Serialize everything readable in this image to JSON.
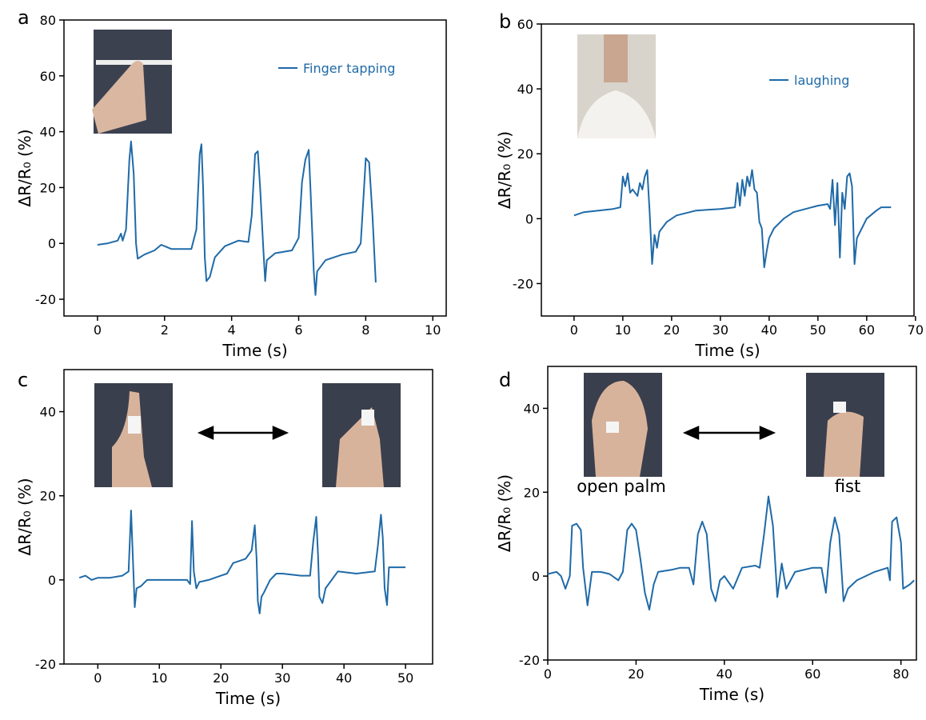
{
  "chart_data": [
    {
      "type": "line",
      "label": "a",
      "x_label": "Time (s)",
      "y_label": "ΔR/R₀ (%)",
      "xlim": [
        -1,
        10.4
      ],
      "ylim": [
        -26,
        80
      ],
      "xticks": [
        0,
        2,
        4,
        6,
        8,
        10
      ],
      "yticks": [
        -20,
        0,
        20,
        40,
        60,
        80
      ],
      "series": [
        {
          "name": "Finger tapping",
          "color": "#1f6aa8",
          "x": [
            0,
            0.3,
            0.6,
            0.7,
            0.75,
            0.85,
            0.95,
            1.0,
            1.08,
            1.15,
            1.2,
            1.4,
            1.7,
            1.9,
            2.0,
            2.2,
            2.5,
            2.8,
            2.95,
            3.05,
            3.1,
            3.15,
            3.2,
            3.25,
            3.35,
            3.5,
            3.8,
            4.2,
            4.5,
            4.6,
            4.7,
            4.78,
            4.85,
            4.95,
            5.0,
            5.05,
            5.3,
            5.8,
            6.0,
            6.1,
            6.2,
            6.3,
            6.35,
            6.45,
            6.5,
            6.55,
            6.8,
            7.3,
            7.7,
            7.85,
            7.95,
            8.0,
            8.1,
            8.2,
            8.3
          ],
          "values": [
            -0.5,
            0,
            1,
            3.5,
            1,
            5,
            30,
            36.5,
            25,
            0,
            -5.5,
            -4,
            -2.5,
            -0.5,
            -1,
            -2,
            -2,
            -2,
            5,
            32,
            35.5,
            20,
            -5,
            -13.5,
            -12,
            -5,
            -1,
            1,
            0.5,
            10,
            32,
            33,
            20,
            -3,
            -13.5,
            -6,
            -3.5,
            -2.5,
            2,
            22,
            30,
            33.5,
            20,
            -10,
            -18.5,
            -10,
            -6,
            -4,
            -3,
            0,
            20,
            30.5,
            29,
            10,
            -14
          ]
        }
      ]
    },
    {
      "type": "line",
      "label": "b",
      "x_label": "Time (s)",
      "y_label": "ΔR/R₀ (%)",
      "xlim": [
        -6.7,
        69.7
      ],
      "ylim": [
        -30,
        60
      ],
      "xticks": [
        0,
        10,
        20,
        30,
        40,
        50,
        60,
        70
      ],
      "yticks": [
        -20,
        0,
        20,
        40,
        60
      ],
      "series": [
        {
          "name": "laughing",
          "color": "#1f6aa8",
          "x": [
            0,
            2,
            5,
            8,
            9.5,
            10,
            10.5,
            11,
            11.5,
            12,
            13,
            13.5,
            14,
            14.5,
            15,
            15.5,
            16,
            16.5,
            17,
            17.5,
            18,
            19,
            21,
            25,
            30,
            33,
            33.5,
            34,
            34.5,
            35,
            35.5,
            36,
            36.5,
            37,
            37.5,
            38,
            38.5,
            39,
            39.5,
            40,
            41,
            43,
            45,
            50,
            52,
            52.5,
            53,
            53.5,
            54,
            54.5,
            55,
            55.5,
            56,
            56.5,
            57,
            57.5,
            58,
            59,
            60,
            62,
            63,
            64,
            65
          ],
          "values": [
            1,
            2,
            2.5,
            3,
            3.5,
            13,
            10,
            14,
            8,
            9,
            7,
            11,
            9,
            13,
            15,
            2,
            -14,
            -5,
            -9,
            -4,
            -3,
            -1,
            1,
            2.5,
            3,
            3.5,
            11,
            4,
            12,
            7,
            13,
            10,
            15,
            9,
            8,
            -1,
            -3,
            -15,
            -10,
            -6,
            -3,
            0,
            2,
            4,
            4.5,
            3,
            12,
            -2,
            11,
            -12,
            8,
            3,
            13,
            14,
            10,
            -14,
            -6,
            -3,
            0,
            2.5,
            3.5,
            3.5,
            3.5
          ]
        }
      ]
    },
    {
      "type": "line",
      "label": "c",
      "x_label": "Time (s)",
      "y_label": "ΔR/R₀ (%)",
      "xlim": [
        -5.5,
        54.4
      ],
      "ylim": [
        -20,
        50
      ],
      "xticks": [
        0,
        10,
        20,
        30,
        40,
        50
      ],
      "yticks": [
        -20,
        0,
        20,
        40
      ],
      "series": [
        {
          "color": "#1f6aa8",
          "x": [
            -3,
            -2,
            -1,
            0,
            2,
            4,
            5,
            5.4,
            5.7,
            6,
            6.3,
            7,
            8,
            10,
            12,
            14.5,
            15,
            15.3,
            15.6,
            16,
            16.5,
            18,
            20,
            21,
            22,
            24,
            25,
            25.5,
            25.8,
            26,
            26.3,
            26.6,
            27,
            28,
            29,
            30,
            33,
            34.5,
            35,
            35.5,
            35.8,
            36,
            36.5,
            37,
            38,
            39,
            42,
            45,
            45.5,
            46,
            46.3,
            46.6,
            47,
            47.3,
            48,
            49,
            50
          ],
          "values": [
            0.5,
            1,
            0,
            0.5,
            0.5,
            1,
            2,
            16.5,
            5,
            -6.5,
            -2,
            -1.5,
            0,
            0,
            0,
            0,
            -1,
            14,
            2,
            -2,
            -0.5,
            0,
            1,
            1.5,
            4,
            5,
            7,
            13,
            5,
            -5,
            -8,
            -4,
            -3,
            0,
            1.5,
            1.5,
            1,
            1,
            9,
            15,
            5,
            -4,
            -5.5,
            -2,
            0,
            2,
            1.5,
            2,
            8,
            15.5,
            10,
            -2,
            -6,
            3,
            3,
            3,
            3
          ]
        }
      ]
    },
    {
      "type": "line",
      "label": "d",
      "x_label": "Time (s)",
      "y_label": "ΔR/R₀ (%)",
      "xlim": [
        0,
        83.5
      ],
      "ylim": [
        -20,
        50
      ],
      "xticks": [
        0,
        20,
        40,
        60,
        80
      ],
      "yticks": [
        -20,
        0,
        20,
        40
      ],
      "annotations": [
        "open palm",
        "fist"
      ],
      "series": [
        {
          "color": "#1f6aa8",
          "x": [
            0,
            2,
            3,
            4,
            5,
            5.5,
            6.5,
            7.5,
            8,
            9,
            10,
            12,
            14,
            16,
            17,
            18,
            19,
            20,
            21,
            22,
            23,
            24,
            25,
            28,
            30,
            32,
            33,
            34,
            35,
            36,
            37,
            38,
            39,
            40,
            42,
            44,
            47,
            48,
            49,
            50,
            51,
            52,
            53,
            54,
            56,
            60,
            62,
            63,
            64,
            65,
            66,
            67,
            68,
            70,
            74,
            77,
            77.5,
            78,
            79,
            80,
            80.5,
            82,
            83
          ],
          "values": [
            0.5,
            1,
            0,
            -3,
            0,
            12,
            12.5,
            11,
            2,
            -7,
            1,
            1,
            0.5,
            -1,
            1,
            11,
            12.5,
            11,
            4,
            -4,
            -8,
            -2,
            1,
            1.5,
            2,
            2,
            -2,
            10,
            13,
            10,
            -3,
            -6,
            -1,
            0,
            -3,
            2,
            2.5,
            2,
            10,
            19,
            12,
            -5,
            3,
            -3,
            1,
            2,
            2,
            -4,
            8,
            14,
            10,
            -6,
            -3,
            -1,
            1,
            2,
            -1,
            13,
            14,
            8,
            -3,
            -2,
            -1
          ]
        }
      ]
    }
  ]
}
